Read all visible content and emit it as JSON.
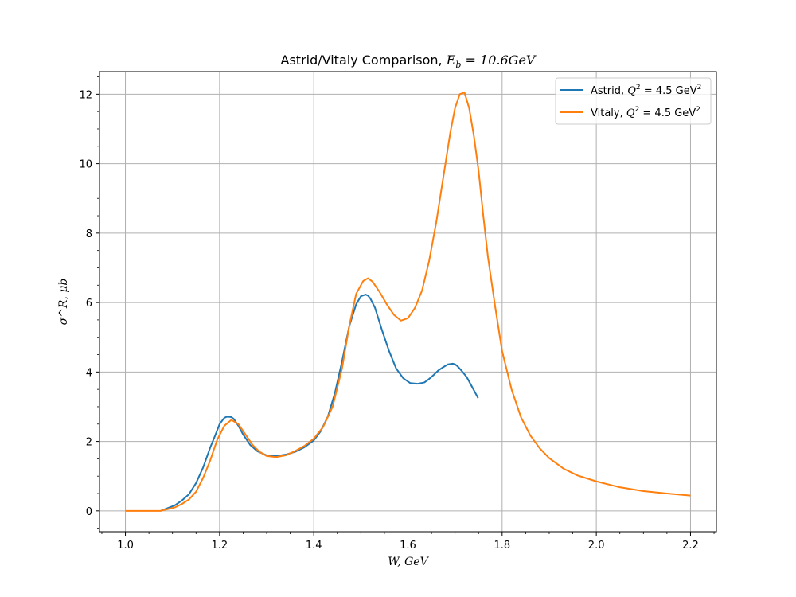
{
  "chart_data": {
    "type": "line",
    "title": "Astrid/Vitaly Comparison, E_b = 10.6GeV",
    "title_parts": {
      "prefix": "Astrid/Vitaly Comparison, ",
      "symbol": "E",
      "subscript": "b",
      "suffix": " = 10.6GeV"
    },
    "xlabel": "W, GeV",
    "ylabel": "σ^R, μb",
    "xlim": [
      0.945,
      2.255
    ],
    "ylim": [
      -0.6,
      12.65
    ],
    "xticks": [
      1.0,
      1.2,
      1.4,
      1.6,
      1.8,
      2.0,
      2.2
    ],
    "xtick_labels": [
      "1.0",
      "1.2",
      "1.4",
      "1.6",
      "1.8",
      "2.0",
      "2.2"
    ],
    "yticks": [
      0,
      2,
      4,
      6,
      8,
      10,
      12
    ],
    "ytick_labels": [
      "0",
      "2",
      "4",
      "6",
      "8",
      "10",
      "12"
    ],
    "grid": true,
    "legend_position": "upper right",
    "series": [
      {
        "name": "Astrid, Q^2 = 4.5 GeV^2",
        "legend_parts": {
          "prefix": "Astrid, ",
          "symbol": "Q",
          "sup": "2",
          "mid": " = 4.5 GeV",
          "sup2": "2"
        },
        "color": "#1f77b4",
        "x": [
          1.075,
          1.09,
          1.105,
          1.12,
          1.135,
          1.15,
          1.165,
          1.18,
          1.19,
          1.2,
          1.21,
          1.215,
          1.22,
          1.225,
          1.23,
          1.24,
          1.25,
          1.265,
          1.28,
          1.3,
          1.32,
          1.34,
          1.36,
          1.38,
          1.4,
          1.415,
          1.43,
          1.445,
          1.46,
          1.475,
          1.49,
          1.5,
          1.51,
          1.515,
          1.52,
          1.53,
          1.545,
          1.56,
          1.575,
          1.59,
          1.605,
          1.62,
          1.635,
          1.645,
          1.655,
          1.665,
          1.675,
          1.685,
          1.695,
          1.7,
          1.705,
          1.715,
          1.725,
          1.735,
          1.749
        ],
        "y": [
          0.0,
          0.08,
          0.16,
          0.3,
          0.48,
          0.8,
          1.25,
          1.82,
          2.15,
          2.5,
          2.68,
          2.71,
          2.71,
          2.7,
          2.65,
          2.45,
          2.2,
          1.9,
          1.72,
          1.6,
          1.58,
          1.62,
          1.7,
          1.83,
          2.03,
          2.3,
          2.72,
          3.4,
          4.3,
          5.3,
          5.95,
          6.18,
          6.23,
          6.2,
          6.12,
          5.85,
          5.2,
          4.6,
          4.1,
          3.82,
          3.68,
          3.66,
          3.7,
          3.8,
          3.92,
          4.05,
          4.14,
          4.22,
          4.24,
          4.22,
          4.17,
          4.02,
          3.85,
          3.6,
          3.25
        ]
      },
      {
        "name": "Vitaly, Q^2 = 4.5 GeV^2",
        "legend_parts": {
          "prefix": "Vitaly, ",
          "symbol": "Q",
          "sup": "2",
          "mid": " = 4.5 GeV",
          "sup2": "2"
        },
        "color": "#ff7f0e",
        "x": [
          1.0,
          1.02,
          1.04,
          1.06,
          1.075,
          1.09,
          1.105,
          1.12,
          1.135,
          1.15,
          1.165,
          1.18,
          1.195,
          1.21,
          1.225,
          1.24,
          1.255,
          1.27,
          1.285,
          1.3,
          1.32,
          1.34,
          1.36,
          1.38,
          1.4,
          1.42,
          1.44,
          1.46,
          1.475,
          1.49,
          1.505,
          1.515,
          1.525,
          1.54,
          1.555,
          1.57,
          1.585,
          1.6,
          1.615,
          1.63,
          1.645,
          1.66,
          1.675,
          1.69,
          1.7,
          1.71,
          1.72,
          1.73,
          1.74,
          1.75,
          1.76,
          1.77,
          1.785,
          1.8,
          1.82,
          1.84,
          1.86,
          1.88,
          1.9,
          1.93,
          1.96,
          2.0,
          2.05,
          2.1,
          2.15,
          2.2
        ],
        "y": [
          0.0,
          0.0,
          0.0,
          0.0,
          0.0,
          0.05,
          0.1,
          0.2,
          0.33,
          0.55,
          0.95,
          1.45,
          2.05,
          2.45,
          2.62,
          2.5,
          2.2,
          1.9,
          1.7,
          1.58,
          1.55,
          1.6,
          1.72,
          1.87,
          2.08,
          2.42,
          3.0,
          4.1,
          5.3,
          6.25,
          6.62,
          6.7,
          6.6,
          6.3,
          5.95,
          5.65,
          5.48,
          5.55,
          5.85,
          6.35,
          7.2,
          8.3,
          9.6,
          10.9,
          11.6,
          12.0,
          12.05,
          11.6,
          10.8,
          9.8,
          8.5,
          7.3,
          5.9,
          4.6,
          3.5,
          2.7,
          2.17,
          1.8,
          1.52,
          1.22,
          1.02,
          0.85,
          0.68,
          0.57,
          0.5,
          0.44
        ]
      }
    ]
  }
}
